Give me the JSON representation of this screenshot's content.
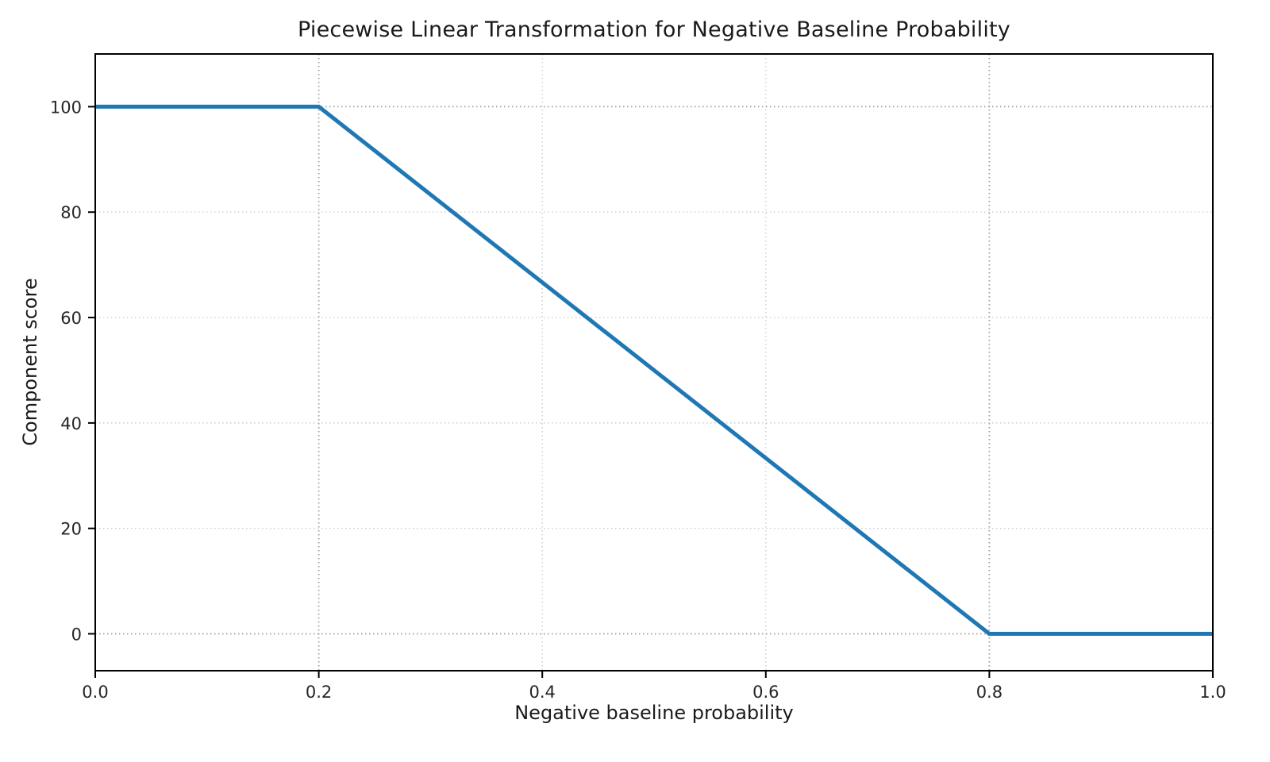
{
  "chart_data": {
    "type": "line",
    "title": "Piecewise Linear Transformation for Negative Baseline Probability",
    "xlabel": "Negative baseline probability",
    "ylabel": "Component score",
    "x": [
      0.0,
      0.2,
      0.8,
      1.0
    ],
    "y": [
      100,
      100,
      0,
      0
    ],
    "xlim": [
      0.0,
      1.0
    ],
    "ylim": [
      -7,
      110
    ],
    "xticks": [
      0.0,
      0.2,
      0.4,
      0.6,
      0.8,
      1.0
    ],
    "xtick_labels": [
      "0.0",
      "0.2",
      "0.4",
      "0.6",
      "0.8",
      "1.0"
    ],
    "yticks": [
      0,
      20,
      40,
      60,
      80,
      100
    ],
    "ytick_labels": [
      "0",
      "20",
      "40",
      "60",
      "80",
      "100"
    ],
    "grid": true,
    "legend": "none",
    "line_color": "#1f77b4",
    "line_width": 5,
    "grid_color": "#cccccc",
    "reference_line_color": "#9e9e9e",
    "spine_color": "#000000",
    "reference_lines": {
      "x": [
        0.2,
        0.8
      ],
      "y": [
        0,
        100
      ]
    }
  }
}
